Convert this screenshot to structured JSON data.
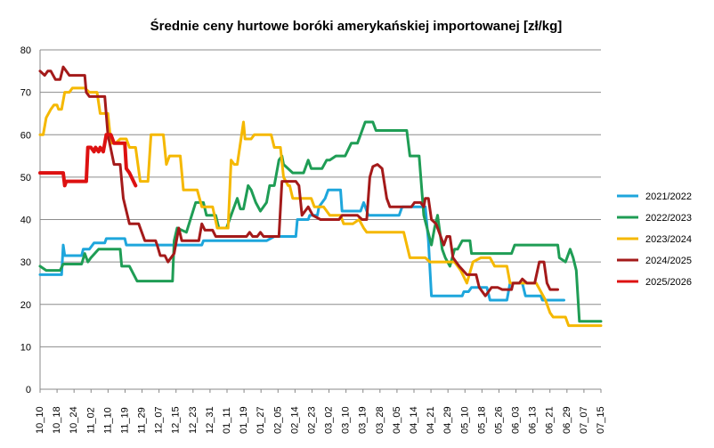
{
  "chart_data": {
    "type": "line",
    "title": "Średnie ceny hurtowe boróki amerykańskiej importowanej [zł/kg]",
    "xlabel": "",
    "ylabel": "",
    "ylim": [
      0,
      80
    ],
    "yticks": [
      0,
      10,
      20,
      30,
      40,
      50,
      60,
      70,
      80
    ],
    "grid": true,
    "legend_position": "right",
    "categories": [
      "10_10",
      "10_18",
      "10_24",
      "11_02",
      "11_10",
      "11_19",
      "11_29",
      "12_07",
      "12_15",
      "12_23",
      "12_31",
      "01_11",
      "01_19",
      "01_27",
      "02_05",
      "02_14",
      "02_23",
      "03_02",
      "03_10",
      "03_19",
      "03_28",
      "04_05",
      "04_14",
      "04_21",
      "04_29",
      "05_10",
      "05_18",
      "05_26",
      "06_03",
      "06_13",
      "06_21",
      "06_29",
      "07_07",
      "07_15"
    ],
    "series": [
      {
        "name": "2021/2022",
        "color": "#1ea6dc",
        "width": 3,
        "points": [
          [
            0,
            27
          ],
          [
            1.4,
            27
          ],
          [
            1.5,
            34
          ],
          [
            1.6,
            31.5
          ],
          [
            2.7,
            31.5
          ],
          [
            2.8,
            33
          ],
          [
            3.2,
            33
          ],
          [
            3.5,
            34.5
          ],
          [
            4.2,
            34.5
          ],
          [
            4.3,
            35.5
          ],
          [
            5.5,
            35.5
          ],
          [
            5.6,
            34
          ],
          [
            10.5,
            34
          ],
          [
            10.6,
            35
          ],
          [
            14.7,
            35
          ],
          [
            15.2,
            36
          ],
          [
            16.6,
            36
          ],
          [
            16.7,
            40
          ],
          [
            17.4,
            40
          ],
          [
            17.5,
            41
          ],
          [
            18,
            41
          ],
          [
            18.1,
            43
          ],
          [
            18.5,
            45
          ],
          [
            18.7,
            47
          ],
          [
            19.5,
            47
          ],
          [
            19.6,
            42
          ],
          [
            20.8,
            42
          ],
          [
            21,
            44
          ],
          [
            21.3,
            41
          ],
          [
            23.3,
            41
          ],
          [
            23.5,
            43
          ],
          [
            25,
            43
          ],
          [
            25.2,
            35
          ],
          [
            25.4,
            22
          ],
          [
            27.4,
            22
          ],
          [
            27.5,
            23
          ],
          [
            27.8,
            23
          ],
          [
            28,
            24
          ],
          [
            29,
            24
          ],
          [
            29.2,
            21
          ],
          [
            30.3,
            21
          ],
          [
            30.5,
            25
          ],
          [
            31.3,
            25
          ],
          [
            31.5,
            22
          ],
          [
            32.5,
            22
          ],
          [
            32.6,
            21
          ],
          [
            34,
            21
          ]
        ]
      },
      {
        "name": "2022/2023",
        "color": "#1f9d55",
        "width": 3,
        "points": [
          [
            0,
            29
          ],
          [
            0.4,
            28
          ],
          [
            1.3,
            28
          ],
          [
            1.5,
            29.5
          ],
          [
            2.7,
            29.5
          ],
          [
            2.9,
            32
          ],
          [
            3.1,
            30
          ],
          [
            3.3,
            31
          ],
          [
            3.8,
            33
          ],
          [
            5.2,
            33
          ],
          [
            5.3,
            29
          ],
          [
            5.8,
            29
          ],
          [
            6.3,
            25.5
          ],
          [
            8.6,
            25.5
          ],
          [
            8.7,
            35
          ],
          [
            8.9,
            38
          ],
          [
            9.5,
            37
          ],
          [
            10.1,
            44
          ],
          [
            10.6,
            44
          ],
          [
            10.8,
            41
          ],
          [
            11.4,
            41
          ],
          [
            11.6,
            38
          ],
          [
            12.1,
            38
          ],
          [
            12.4,
            41
          ],
          [
            12.8,
            45
          ],
          [
            13,
            42.5
          ],
          [
            13.2,
            42.5
          ],
          [
            13.5,
            48
          ],
          [
            13.7,
            47
          ],
          [
            14,
            44
          ],
          [
            14.3,
            42
          ],
          [
            14.7,
            44
          ],
          [
            14.9,
            48
          ],
          [
            15.2,
            48
          ],
          [
            15.5,
            54
          ],
          [
            15.7,
            55
          ],
          [
            15.8,
            53
          ],
          [
            16.4,
            51
          ],
          [
            17.1,
            51
          ],
          [
            17.4,
            54
          ],
          [
            17.6,
            52
          ],
          [
            18.3,
            52
          ],
          [
            18.6,
            54
          ],
          [
            18.8,
            54
          ],
          [
            19.2,
            55
          ],
          [
            19.8,
            55
          ],
          [
            20.2,
            58
          ],
          [
            20.6,
            58
          ],
          [
            21.1,
            63
          ],
          [
            21.6,
            63
          ],
          [
            21.8,
            61
          ],
          [
            23.8,
            61
          ],
          [
            24,
            55
          ],
          [
            24.6,
            55
          ],
          [
            24.9,
            41
          ],
          [
            25.4,
            34
          ],
          [
            25.6,
            38
          ],
          [
            25.8,
            41
          ],
          [
            26.1,
            33
          ],
          [
            26.3,
            31
          ],
          [
            26.6,
            29
          ],
          [
            26.9,
            33
          ],
          [
            27.1,
            33
          ],
          [
            27.4,
            35
          ],
          [
            27.9,
            35
          ],
          [
            28,
            32
          ],
          [
            30.6,
            32
          ],
          [
            30.8,
            34
          ],
          [
            33.6,
            34
          ],
          [
            33.7,
            31
          ],
          [
            34.1,
            30
          ],
          [
            34.4,
            33
          ],
          [
            34.6,
            31
          ],
          [
            34.8,
            28
          ],
          [
            35,
            16
          ],
          [
            36.4,
            16
          ]
        ]
      },
      {
        "name": "2023/2024",
        "color": "#f5b800",
        "width": 3,
        "points": [
          [
            0,
            60
          ],
          [
            0.2,
            60
          ],
          [
            0.4,
            64
          ],
          [
            0.7,
            66
          ],
          [
            0.9,
            67
          ],
          [
            1.1,
            67
          ],
          [
            1.2,
            66
          ],
          [
            1.4,
            66
          ],
          [
            1.6,
            70
          ],
          [
            1.9,
            70
          ],
          [
            2.1,
            71
          ],
          [
            2.9,
            71
          ],
          [
            3.2,
            70
          ],
          [
            3.7,
            70
          ],
          [
            3.9,
            65
          ],
          [
            4.1,
            65
          ],
          [
            4.4,
            65
          ],
          [
            4.6,
            58
          ],
          [
            4.9,
            58
          ],
          [
            5.2,
            59
          ],
          [
            5.6,
            59
          ],
          [
            5.8,
            57
          ],
          [
            6.2,
            57
          ],
          [
            6.5,
            49
          ],
          [
            7,
            49
          ],
          [
            7.2,
            60
          ],
          [
            8,
            60
          ],
          [
            8.2,
            53
          ],
          [
            8.4,
            55
          ],
          [
            8.6,
            55
          ],
          [
            9.1,
            55
          ],
          [
            9.3,
            47
          ],
          [
            10.2,
            47
          ],
          [
            10.5,
            43
          ],
          [
            11.2,
            43
          ],
          [
            11.5,
            38
          ],
          [
            12.2,
            38
          ],
          [
            12.4,
            54
          ],
          [
            12.6,
            53
          ],
          [
            12.8,
            53
          ],
          [
            13,
            58
          ],
          [
            13.2,
            63
          ],
          [
            13.3,
            59
          ],
          [
            13.7,
            59
          ],
          [
            13.9,
            60
          ],
          [
            15,
            60
          ],
          [
            15.2,
            57
          ],
          [
            15.6,
            57
          ],
          [
            15.8,
            50
          ],
          [
            16.1,
            48
          ],
          [
            16.2,
            48
          ],
          [
            16.4,
            45
          ],
          [
            17.6,
            45
          ],
          [
            17.8,
            43
          ],
          [
            18.4,
            43
          ],
          [
            18.8,
            41
          ],
          [
            19.5,
            41
          ],
          [
            19.7,
            39
          ],
          [
            20.3,
            39
          ],
          [
            20.7,
            40
          ],
          [
            21,
            38
          ],
          [
            21.2,
            37
          ],
          [
            21.8,
            37
          ],
          [
            22.1,
            37
          ],
          [
            23.6,
            37
          ],
          [
            24,
            31
          ],
          [
            25,
            31
          ],
          [
            25.3,
            30
          ],
          [
            26.9,
            30
          ],
          [
            27.3,
            28
          ],
          [
            27.7,
            25
          ],
          [
            28.1,
            30
          ],
          [
            28.6,
            31
          ],
          [
            29.2,
            31
          ],
          [
            29.5,
            29
          ],
          [
            30.3,
            29
          ],
          [
            30.5,
            25
          ],
          [
            32.2,
            25
          ],
          [
            32.8,
            21
          ],
          [
            33.1,
            18
          ],
          [
            33.3,
            17
          ],
          [
            34.1,
            17
          ],
          [
            34.3,
            15
          ],
          [
            36.4,
            15
          ]
        ]
      },
      {
        "name": "2024/2025",
        "color": "#a41a1a",
        "width": 3,
        "points": [
          [
            0,
            75
          ],
          [
            0.3,
            74
          ],
          [
            0.5,
            75
          ],
          [
            0.7,
            75
          ],
          [
            1,
            73
          ],
          [
            1.3,
            73
          ],
          [
            1.5,
            76
          ],
          [
            1.7,
            75
          ],
          [
            1.9,
            74
          ],
          [
            2.9,
            74
          ],
          [
            3,
            70
          ],
          [
            3.2,
            69
          ],
          [
            4.2,
            69
          ],
          [
            4.4,
            60
          ],
          [
            4.8,
            53
          ],
          [
            5.2,
            53
          ],
          [
            5.4,
            45
          ],
          [
            5.8,
            39
          ],
          [
            6.4,
            39
          ],
          [
            6.8,
            35
          ],
          [
            7.5,
            35
          ],
          [
            7.6,
            34
          ],
          [
            7.8,
            31.5
          ],
          [
            8.1,
            31.5
          ],
          [
            8.3,
            30
          ],
          [
            8.5,
            31
          ],
          [
            8.7,
            32
          ],
          [
            9,
            38
          ],
          [
            9.2,
            35
          ],
          [
            10.3,
            35
          ],
          [
            10.5,
            39
          ],
          [
            10.7,
            37.5
          ],
          [
            11.2,
            37.5
          ],
          [
            11.4,
            36
          ],
          [
            13.4,
            36
          ],
          [
            13.6,
            37
          ],
          [
            13.8,
            36
          ],
          [
            14.1,
            36
          ],
          [
            14.3,
            37
          ],
          [
            14.5,
            36
          ],
          [
            15,
            36
          ],
          [
            15.5,
            36
          ],
          [
            15.7,
            49
          ],
          [
            16.6,
            49
          ],
          [
            16.8,
            48
          ],
          [
            17,
            41
          ],
          [
            17.2,
            42
          ],
          [
            17.4,
            43
          ],
          [
            17.7,
            41
          ],
          [
            18.2,
            40
          ],
          [
            19.4,
            40
          ],
          [
            19.6,
            41
          ],
          [
            20.6,
            41
          ],
          [
            20.9,
            40
          ],
          [
            21.2,
            40
          ],
          [
            21.4,
            50
          ],
          [
            21.6,
            52.5
          ],
          [
            21.9,
            53
          ],
          [
            22.2,
            52
          ],
          [
            22.5,
            45
          ],
          [
            22.7,
            43
          ],
          [
            24.1,
            43
          ],
          [
            24.3,
            44
          ],
          [
            24.7,
            44
          ],
          [
            24.9,
            43
          ],
          [
            25,
            45
          ],
          [
            25.2,
            45
          ],
          [
            25.4,
            40
          ],
          [
            25.7,
            39
          ],
          [
            26.2,
            34
          ],
          [
            26.4,
            36
          ],
          [
            26.6,
            36
          ],
          [
            26.8,
            31
          ],
          [
            27.2,
            29
          ],
          [
            27.7,
            27
          ],
          [
            28.3,
            27
          ],
          [
            28.5,
            24
          ],
          [
            28.9,
            22
          ],
          [
            29.3,
            24
          ],
          [
            29.7,
            24
          ],
          [
            30,
            23.5
          ],
          [
            30.6,
            23.5
          ],
          [
            30.7,
            25
          ],
          [
            31.1,
            25
          ],
          [
            31.3,
            26
          ],
          [
            31.6,
            25
          ],
          [
            32.1,
            25
          ],
          [
            32.4,
            30
          ],
          [
            32.7,
            30
          ],
          [
            32.9,
            25
          ],
          [
            33.1,
            23.5
          ],
          [
            33.6,
            23.5
          ]
        ]
      },
      {
        "name": "2025/2026",
        "color": "#dd1111",
        "width": 4,
        "points": [
          [
            0,
            51
          ],
          [
            1.5,
            51
          ],
          [
            1.6,
            48
          ],
          [
            1.7,
            49
          ],
          [
            2.5,
            49
          ],
          [
            3,
            49
          ],
          [
            3.1,
            57
          ],
          [
            3.3,
            57
          ],
          [
            3.5,
            56
          ],
          [
            3.6,
            57
          ],
          [
            3.8,
            56
          ],
          [
            3.9,
            57
          ],
          [
            4.1,
            56
          ],
          [
            4.3,
            60
          ],
          [
            4.6,
            60
          ],
          [
            4.8,
            58
          ],
          [
            5.2,
            58
          ],
          [
            5.5,
            58
          ],
          [
            5.6,
            52
          ],
          [
            5.8,
            51
          ],
          [
            6.2,
            48
          ]
        ]
      }
    ]
  }
}
